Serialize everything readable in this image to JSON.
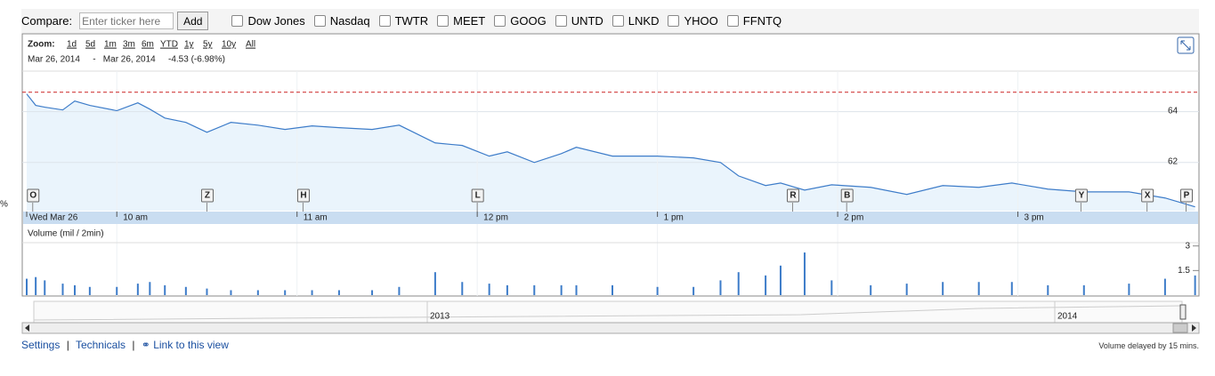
{
  "compare": {
    "label": "Compare:",
    "placeholder": "Enter ticker here",
    "button": "Add",
    "tickers": [
      "Dow Jones",
      "Nasdaq",
      "TWTR",
      "MEET",
      "GOOG",
      "UNTD",
      "LNKD",
      "YHOO",
      "FFNTQ"
    ]
  },
  "zoom": {
    "label": "Zoom:",
    "options": [
      "1d",
      "5d",
      "1m",
      "3m",
      "6m",
      "YTD",
      "1y",
      "5y",
      "10y",
      "All"
    ]
  },
  "range": {
    "start": "Mar 26, 2014",
    "separator": "-",
    "end": "Mar 26, 2014",
    "change": "-4.53 (-6.98%)"
  },
  "chart_data": [
    {
      "type": "line",
      "color": "#3d7cc9",
      "area_color": "#eaf4fc",
      "grid": true,
      "x": [
        570,
        573,
        576,
        582,
        586,
        591,
        600,
        607,
        611,
        616,
        623,
        630,
        638,
        647,
        656,
        665,
        674,
        685,
        694,
        706,
        715,
        724,
        730,
        739,
        748,
        753,
        765,
        780,
        792,
        801,
        807,
        816,
        821,
        829,
        838,
        851,
        863,
        875,
        887,
        898,
        910,
        922,
        937,
        949,
        959
      ],
      "values": [
        64.7,
        64.25,
        64.18,
        64.07,
        64.42,
        64.25,
        64.04,
        64.35,
        64.1,
        63.75,
        63.58,
        63.19,
        63.58,
        63.47,
        63.3,
        63.44,
        63.37,
        63.3,
        63.47,
        62.77,
        62.67,
        62.25,
        62.42,
        62.0,
        62.35,
        62.6,
        62.25,
        62.25,
        62.18,
        62.0,
        61.47,
        61.09,
        61.19,
        60.91,
        61.12,
        61.02,
        60.74,
        61.09,
        61.02,
        61.19,
        60.95,
        60.84,
        60.84,
        60.6,
        60.25
      ],
      "reference_line": {
        "value": 64.77,
        "color": "#cc2222"
      },
      "xlim": [
        570,
        960
      ],
      "xticks": [
        {
          "value": 570,
          "label": "Wed Mar 26"
        },
        {
          "value": 600,
          "label": "10 am"
        },
        {
          "value": 660,
          "label": "11 am"
        },
        {
          "value": 720,
          "label": "12 pm"
        },
        {
          "value": 780,
          "label": "1 pm"
        },
        {
          "value": 840,
          "label": "2 pm"
        },
        {
          "value": 900,
          "label": "3 pm"
        }
      ],
      "ylim": [
        60.1,
        65.6
      ],
      "yticks": [
        62,
        64
      ],
      "flags": [
        {
          "label": "O",
          "x": 572
        },
        {
          "label": "Z",
          "x": 630
        },
        {
          "label": "H",
          "x": 662
        },
        {
          "label": "L",
          "x": 720
        },
        {
          "label": "R",
          "x": 825
        },
        {
          "label": "B",
          "x": 843
        },
        {
          "label": "Y",
          "x": 921
        },
        {
          "label": "X",
          "x": 943
        },
        {
          "label": "P",
          "x": 956
        }
      ]
    },
    {
      "type": "bar",
      "title": "Volume (mil / 2min)",
      "color": "#3d7cc9",
      "x": [
        570,
        573,
        576,
        582,
        586,
        591,
        600,
        607,
        611,
        616,
        623,
        630,
        638,
        647,
        656,
        665,
        674,
        685,
        694,
        706,
        715,
        724,
        730,
        739,
        748,
        753,
        765,
        780,
        792,
        801,
        807,
        816,
        821,
        829,
        838,
        851,
        863,
        875,
        887,
        898,
        910,
        922,
        937,
        949,
        959
      ],
      "values": [
        1.0,
        1.1,
        0.9,
        0.7,
        0.6,
        0.5,
        0.5,
        0.7,
        0.8,
        0.6,
        0.5,
        0.4,
        0.3,
        0.3,
        0.3,
        0.3,
        0.3,
        0.3,
        0.5,
        1.4,
        0.8,
        0.7,
        0.6,
        0.6,
        0.6,
        0.6,
        0.6,
        0.5,
        0.5,
        0.9,
        1.4,
        1.2,
        1.8,
        2.6,
        0.9,
        0.6,
        0.7,
        0.8,
        0.8,
        0.8,
        0.6,
        0.6,
        0.7,
        1.0,
        1.2
      ],
      "xlim": [
        570,
        960
      ],
      "ylim": [
        0,
        3.2
      ],
      "yticks": [
        1.5,
        3
      ]
    }
  ],
  "navigator": {
    "labels": [
      "2013",
      "2014"
    ]
  },
  "footer": {
    "settings": "Settings",
    "divider1": "|",
    "technicals": "Technicals",
    "divider2": "|",
    "link": "Link to this view",
    "delay_note": "Volume delayed by 15 mins."
  },
  "edge_text": "%"
}
